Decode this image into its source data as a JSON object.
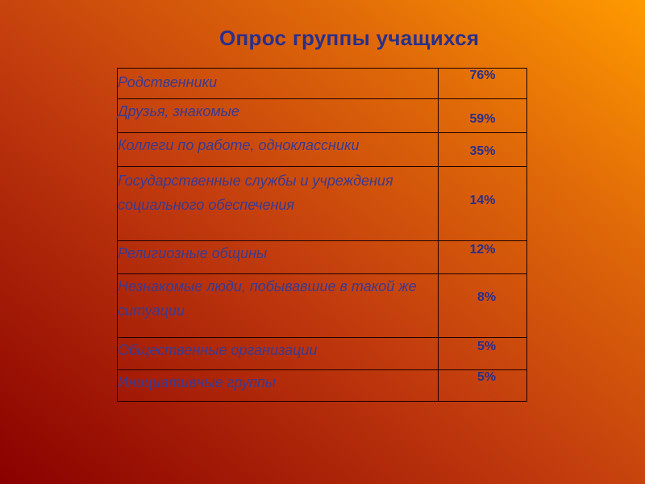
{
  "title": "Опрос группы учащихся",
  "rows": [
    {
      "label": "Родственники",
      "value": "76%"
    },
    {
      "label": "Друзья, знакомые",
      "value": "59%"
    },
    {
      "label": "Коллеги по работе, одноклассники",
      "value": "35%"
    },
    {
      "label": "Государственные службы и учреждения социального обеспечения",
      "value": "14%"
    },
    {
      "label": "Религиозные общины",
      "value": "12%"
    },
    {
      "label": "Незнакомые люди, побывавшие в такой же ситуации",
      "value": "8%"
    },
    {
      "label": "Общественные организации",
      "value": "5%"
    },
    {
      "label": "Инициативные группы",
      "value": "5%"
    }
  ]
}
